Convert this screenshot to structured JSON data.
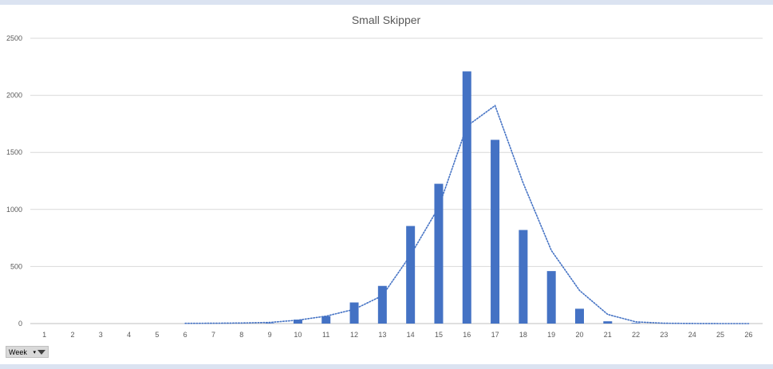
{
  "chart_data": {
    "type": "bar",
    "title": "Small Skipper",
    "categories": [
      "1",
      "2",
      "3",
      "4",
      "5",
      "6",
      "7",
      "8",
      "9",
      "10",
      "11",
      "12",
      "13",
      "14",
      "15",
      "16",
      "17",
      "18",
      "19",
      "20",
      "21",
      "22",
      "23",
      "24",
      "25",
      "26"
    ],
    "series": [
      {
        "kind": "bar",
        "color": "#4472c4",
        "values": [
          0,
          0,
          0,
          0,
          0,
          0,
          0,
          0,
          5,
          35,
          65,
          185,
          330,
          855,
          1225,
          2210,
          1610,
          820,
          460,
          130,
          20,
          5,
          0,
          0,
          0,
          0
        ]
      },
      {
        "kind": "trendline",
        "style": "dotted",
        "color": "#4472c4",
        "values": [
          0,
          0,
          0,
          0,
          0,
          2,
          3,
          5,
          10,
          30,
          65,
          125,
          245,
          600,
          1020,
          1730,
          1910,
          1230,
          640,
          290,
          80,
          15,
          3,
          1,
          0,
          0
        ]
      }
    ],
    "xlabel": "",
    "ylabel": "",
    "ylim": [
      0,
      2500
    ],
    "yticks": [
      0,
      500,
      1000,
      1500,
      2000,
      2500
    ],
    "grid": true,
    "legend": "none"
  },
  "field_button": {
    "label": "Week",
    "dropdown_glyph": "▾",
    "filter_icon": "filter-icon"
  }
}
